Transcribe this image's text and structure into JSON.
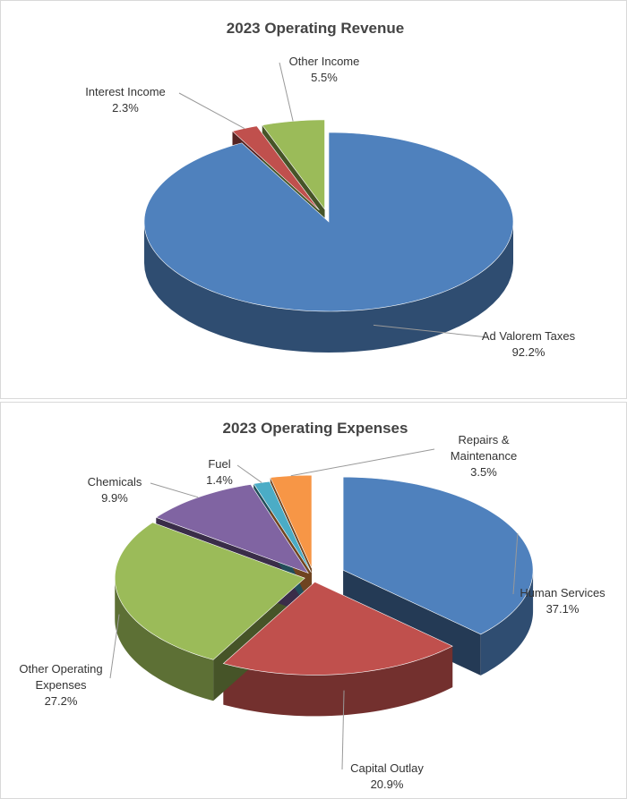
{
  "chart_data": [
    {
      "type": "pie",
      "title": "2023 Operating Revenue",
      "categories": [
        "Ad Valorem Taxes",
        "Interest Income",
        "Other Income"
      ],
      "values": [
        92.2,
        2.3,
        5.5
      ],
      "value_labels": [
        "92.2%",
        "2.3%",
        "5.5%"
      ],
      "colors": [
        "#4f81bd",
        "#c0504d",
        "#9bbb59"
      ]
    },
    {
      "type": "pie",
      "title": "2023 Operating Expenses",
      "categories": [
        "Human Services",
        "Capital Outlay",
        "Other Operating Expenses",
        "Chemicals",
        "Fuel",
        "Repairs & Maintenance"
      ],
      "values": [
        37.1,
        20.9,
        27.2,
        9.9,
        1.4,
        3.5
      ],
      "value_labels": [
        "37.1%",
        "20.9%",
        "27.2%",
        "9.9%",
        "1.4%",
        "3.5%"
      ],
      "colors": [
        "#4f81bd",
        "#c0504d",
        "#9bbb59",
        "#8064a2",
        "#4bacc6",
        "#f79646"
      ]
    }
  ]
}
